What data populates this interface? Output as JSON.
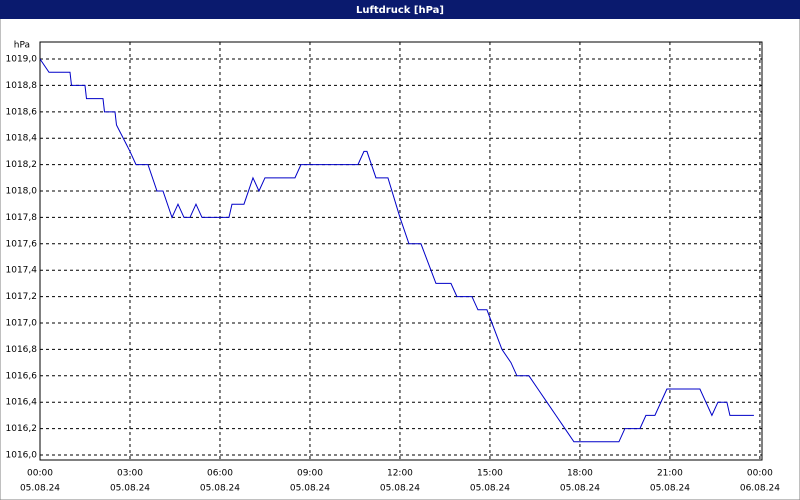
{
  "chart_data": {
    "type": "line",
    "title": "Luftdruck [hPa]",
    "y_unit": "hPa",
    "x": [
      0,
      0.3,
      1.0,
      1.05,
      1.5,
      1.55,
      2.1,
      2.15,
      2.5,
      2.55,
      3.0,
      3.2,
      3.6,
      3.9,
      4.1,
      4.4,
      4.6,
      4.8,
      5.0,
      5.2,
      5.4,
      6.3,
      6.4,
      6.8,
      7.1,
      7.3,
      7.5,
      8.5,
      8.7,
      10.6,
      10.8,
      10.9,
      11.2,
      11.6,
      12.0,
      12.3,
      12.7,
      13.2,
      13.7,
      13.9,
      14.4,
      14.6,
      14.9,
      15.4,
      15.7,
      15.9,
      16.3,
      16.6,
      16.9,
      17.2,
      17.5,
      17.8,
      19.3,
      19.5,
      20.0,
      20.2,
      20.5,
      20.9,
      22.0,
      22.2,
      22.4,
      22.6,
      22.9,
      23.0,
      23.8
    ],
    "values": [
      1019.0,
      1018.9,
      1018.9,
      1018.8,
      1018.8,
      1018.7,
      1018.7,
      1018.6,
      1018.6,
      1018.5,
      1018.3,
      1018.2,
      1018.2,
      1018.0,
      1018.0,
      1017.8,
      1017.9,
      1017.8,
      1017.8,
      1017.9,
      1017.8,
      1017.8,
      1017.9,
      1017.9,
      1018.1,
      1018.0,
      1018.1,
      1018.1,
      1018.2,
      1018.2,
      1018.3,
      1018.3,
      1018.1,
      1018.1,
      1017.8,
      1017.6,
      1017.6,
      1017.3,
      1017.3,
      1017.2,
      1017.2,
      1017.1,
      1017.1,
      1016.8,
      1016.7,
      1016.6,
      1016.6,
      1016.5,
      1016.4,
      1016.3,
      1016.2,
      1016.1,
      1016.1,
      1016.2,
      1016.2,
      1016.3,
      1016.3,
      1016.5,
      1016.5,
      1016.4,
      1016.3,
      1016.4,
      1016.4,
      1016.3,
      1016.3
    ],
    "color": "#0000c8",
    "xlim": [
      0,
      24.07
    ],
    "ylim": [
      1015.962,
      1019.129
    ],
    "xticks": [
      {
        "value": 0,
        "label": "00:00"
      },
      {
        "value": 3,
        "label": "03:00"
      },
      {
        "value": 6,
        "label": "06:00"
      },
      {
        "value": 9,
        "label": "09:00"
      },
      {
        "value": 12,
        "label": "12:00"
      },
      {
        "value": 15,
        "label": "15:00"
      },
      {
        "value": 18,
        "label": "18:00"
      },
      {
        "value": 21,
        "label": "21:00"
      },
      {
        "value": 24,
        "label": "00:00"
      }
    ],
    "xtick_dates": [
      "05.08.24",
      "05.08.24",
      "05.08.24",
      "05.08.24",
      "05.08.24",
      "05.08.24",
      "05.08.24",
      "05.08.24",
      "06.08.24"
    ],
    "yticks": [
      {
        "value": 1016.0,
        "label": "1016,0"
      },
      {
        "value": 1016.2,
        "label": "1016,2"
      },
      {
        "value": 1016.4,
        "label": "1016,4"
      },
      {
        "value": 1016.6,
        "label": "1016,6"
      },
      {
        "value": 1016.8,
        "label": "1016,8"
      },
      {
        "value": 1017.0,
        "label": "1017,0"
      },
      {
        "value": 1017.2,
        "label": "1017,2"
      },
      {
        "value": 1017.4,
        "label": "1017,4"
      },
      {
        "value": 1017.6,
        "label": "1017,6"
      },
      {
        "value": 1017.8,
        "label": "1017,8"
      },
      {
        "value": 1018.0,
        "label": "1018,0"
      },
      {
        "value": 1018.2,
        "label": "1018,2"
      },
      {
        "value": 1018.4,
        "label": "1018,4"
      },
      {
        "value": 1018.6,
        "label": "1018,6"
      },
      {
        "value": 1018.8,
        "label": "1018,8"
      },
      {
        "value": 1019.0,
        "label": "1019,0"
      }
    ],
    "grid": true
  }
}
